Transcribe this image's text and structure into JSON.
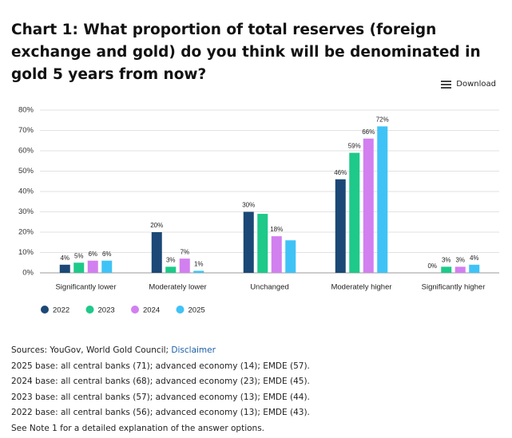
{
  "chart_data": {
    "type": "bar",
    "title": "Chart 1: What proportion of total reserves (foreign exchange and gold) do you think will be denominated in gold 5 years from now?",
    "download": "Download",
    "categories": [
      "Significantly lower",
      "Moderately lower",
      "Unchanged",
      "Moderately higher",
      "Significantly higher"
    ],
    "series": [
      {
        "name": "2022",
        "color": "#1b4876",
        "values": [
          4,
          20,
          30,
          46,
          0
        ],
        "value_labels": [
          "4%",
          "20%",
          "30%",
          "46%",
          "0%"
        ]
      },
      {
        "name": "2023",
        "color": "#1ec98a",
        "values": [
          5,
          3,
          29,
          59,
          3
        ],
        "value_labels": [
          "5%",
          "3%",
          null,
          "59%",
          "3%"
        ]
      },
      {
        "name": "2024",
        "color": "#d27ff0",
        "values": [
          6,
          7,
          18,
          66,
          3
        ],
        "value_labels": [
          "6%",
          "7%",
          "18%",
          "66%",
          "3%"
        ]
      },
      {
        "name": "2025",
        "color": "#3fc3f6",
        "values": [
          6,
          1,
          16,
          72,
          4
        ],
        "value_labels": [
          "6%",
          "1%",
          null,
          "72%",
          "4%"
        ]
      }
    ],
    "ylim": [
      0,
      80
    ],
    "yticks": [
      {
        "value": 0,
        "label": "0%"
      },
      {
        "value": 10,
        "label": "10%"
      },
      {
        "value": 20,
        "label": "20%"
      },
      {
        "value": 30,
        "label": "30%"
      },
      {
        "value": 40,
        "label": "40%"
      },
      {
        "value": 50,
        "label": "50%"
      },
      {
        "value": 60,
        "label": "60%"
      },
      {
        "value": 70,
        "label": "70%"
      },
      {
        "value": 80,
        "label": "80%"
      }
    ],
    "grid": true,
    "legend": "bottom-left"
  },
  "footer": {
    "sources": "Sources: YouGov, World Gold Council;",
    "disclaimer": "Disclaimer",
    "notes": [
      "2025 base: all central banks (71); advanced economy (14); EMDE (57).",
      "2024 base: all central banks (68); advanced economy (23); EMDE (45).",
      "2023 base: all central banks (57); advanced economy (13); EMDE (44).",
      "2022 base: all central banks (56); advanced economy (13); EMDE (43).",
      "See Note 1 for a detailed explanation of the answer options."
    ]
  }
}
